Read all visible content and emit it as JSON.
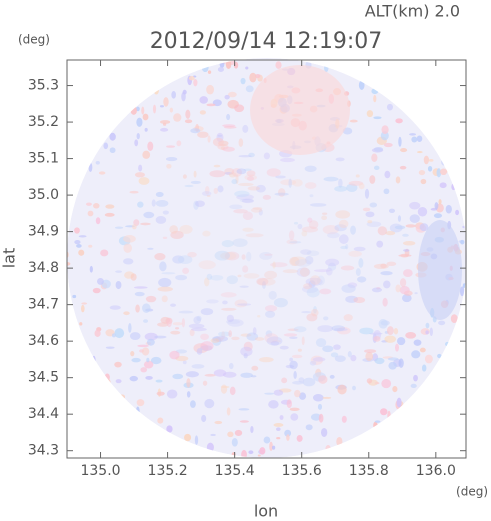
{
  "chart_data": {
    "type": "radar-field",
    "title": "2012/09/14 12:19:07",
    "subtitle": "ALT(km) 2.0",
    "x_label": "lon",
    "y_label": "lat",
    "x_unit": "(deg)",
    "y_unit": "(deg)",
    "xlim": [
      134.9,
      136.09
    ],
    "ylim": [
      34.28,
      35.37
    ],
    "xticks": [
      {
        "value": 135,
        "label": "135.0"
      },
      135.2,
      135.4,
      135.6,
      135.8,
      {
        "value": 136,
        "label": "136.0"
      }
    ],
    "yticks": [
      34.3,
      34.4,
      34.5,
      34.6,
      34.7,
      34.8,
      34.9,
      {
        "value": 35,
        "label": "35.0"
      },
      35.1,
      35.2,
      35.3
    ]
  }
}
